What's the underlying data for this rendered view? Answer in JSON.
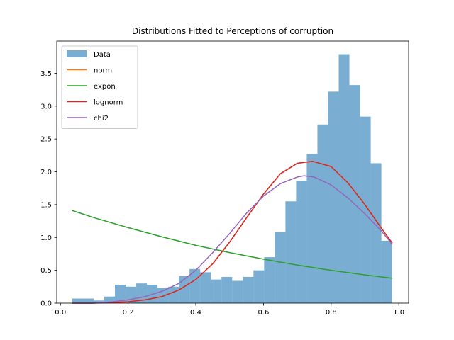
{
  "chart_data": {
    "type": "bar",
    "title": "Distributions Fitted to Perceptions of corruption",
    "xlabel": "",
    "ylabel": "",
    "xlim": [
      -0.011,
      1.029
    ],
    "ylim": [
      0,
      3.99
    ],
    "xticks": [
      0.0,
      0.2,
      0.4,
      0.6,
      0.8,
      1.0
    ],
    "xtick_labels": [
      "0.0",
      "0.2",
      "0.4",
      "0.6",
      "0.8",
      "1.0"
    ],
    "yticks": [
      0.0,
      0.5,
      1.0,
      1.5,
      2.0,
      2.5,
      3.0,
      3.5
    ],
    "ytick_labels": [
      "0.0",
      "0.5",
      "1.0",
      "1.5",
      "2.0",
      "2.5",
      "3.0",
      "3.5"
    ],
    "legend_position": "top-left",
    "histogram": {
      "name": "Data",
      "color": "#1f77b4",
      "bin_start": 0.035,
      "bin_width": 0.0315,
      "values": [
        0.07,
        0.07,
        0.04,
        0.1,
        0.28,
        0.25,
        0.3,
        0.28,
        0.23,
        0.25,
        0.41,
        0.52,
        0.47,
        0.36,
        0.4,
        0.34,
        0.4,
        0.5,
        0.7,
        1.08,
        1.55,
        1.86,
        2.27,
        2.72,
        3.22,
        3.79,
        3.32,
        2.84,
        2.13,
        0.95
      ]
    },
    "series": [
      {
        "name": "norm",
        "color": "#ff7f0e",
        "x": [
          0.035,
          0.095,
          0.155,
          0.2,
          0.25,
          0.3,
          0.35,
          0.4,
          0.45,
          0.5,
          0.55,
          0.6,
          0.65,
          0.7,
          0.745,
          0.8,
          0.85,
          0.9,
          0.95,
          0.98
        ],
        "y": [
          0.0,
          0.0,
          0.01,
          0.02,
          0.05,
          0.1,
          0.2,
          0.36,
          0.6,
          0.93,
          1.3,
          1.66,
          1.97,
          2.13,
          2.16,
          2.08,
          1.83,
          1.5,
          1.13,
          0.92
        ]
      },
      {
        "name": "expon",
        "color": "#2ca02c",
        "x": [
          0.035,
          0.1,
          0.2,
          0.3,
          0.4,
          0.5,
          0.6,
          0.7,
          0.8,
          0.9,
          0.98
        ],
        "y": [
          1.41,
          1.3,
          1.15,
          1.01,
          0.88,
          0.77,
          0.67,
          0.58,
          0.5,
          0.43,
          0.38
        ]
      },
      {
        "name": "lognorm",
        "color": "#d62728",
        "x": [
          0.035,
          0.095,
          0.155,
          0.2,
          0.25,
          0.3,
          0.35,
          0.4,
          0.45,
          0.5,
          0.55,
          0.6,
          0.65,
          0.7,
          0.745,
          0.8,
          0.85,
          0.9,
          0.95,
          0.98
        ],
        "y": [
          0.0,
          0.0,
          0.01,
          0.02,
          0.05,
          0.1,
          0.2,
          0.36,
          0.6,
          0.93,
          1.3,
          1.66,
          1.97,
          2.13,
          2.16,
          2.08,
          1.83,
          1.5,
          1.13,
          0.92
        ]
      },
      {
        "name": "chi2",
        "color": "#9467bd",
        "x": [
          0.035,
          0.095,
          0.155,
          0.2,
          0.25,
          0.3,
          0.35,
          0.4,
          0.45,
          0.5,
          0.55,
          0.6,
          0.65,
          0.7,
          0.72,
          0.75,
          0.8,
          0.85,
          0.9,
          0.95,
          0.98
        ],
        "y": [
          0.0,
          0.0,
          0.02,
          0.05,
          0.1,
          0.18,
          0.3,
          0.5,
          0.77,
          1.06,
          1.37,
          1.63,
          1.82,
          1.92,
          1.94,
          1.92,
          1.8,
          1.6,
          1.36,
          1.09,
          0.9
        ]
      }
    ]
  }
}
